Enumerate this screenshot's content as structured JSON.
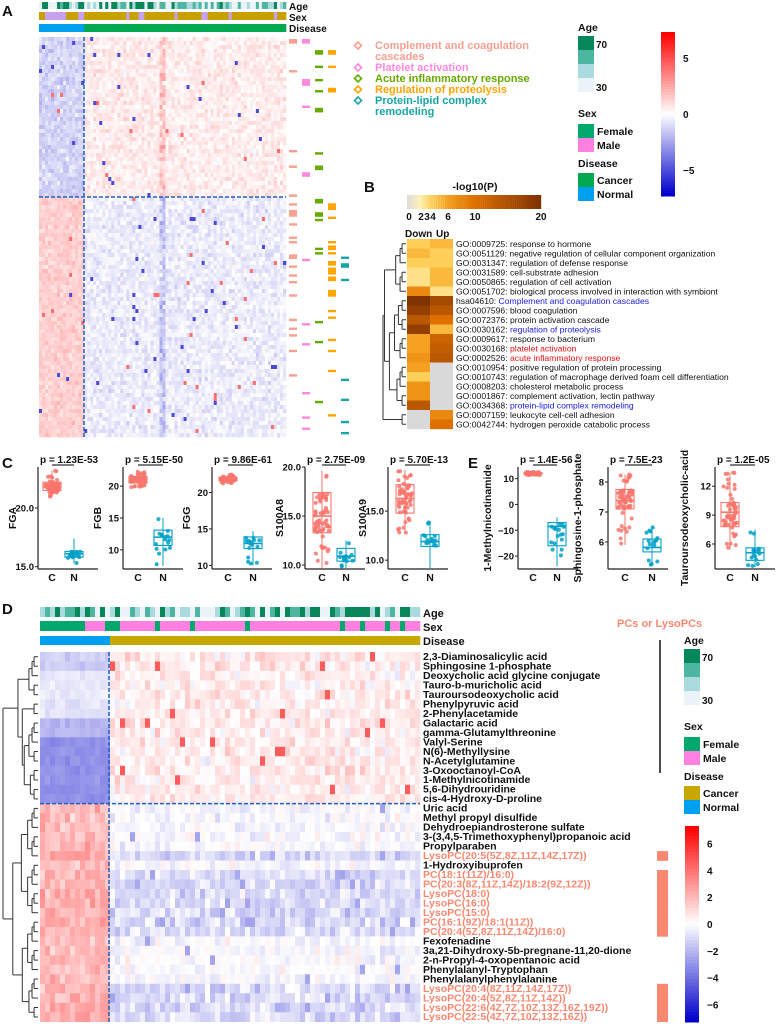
{
  "panel_labels": {
    "a": "A",
    "b": "B",
    "c": "C",
    "d": "D",
    "e": "E"
  },
  "colors": {
    "heat_low": "#0000cc",
    "heat_mid": "#ffffff",
    "heat_high": "#ff0000",
    "age_shades": [
      "#eaf4f8",
      "#a8dade",
      "#4db6a0",
      "#08875a"
    ],
    "female": "#00a86b",
    "male": "#ff80e0",
    "cancer_a": "#00a850",
    "normal": "#00a0f0",
    "cancer_d": "#c8a800",
    "sex_a_1": "#c8a000",
    "sex_a_2": "#c8a0f0",
    "cancer_box": "#f8766d",
    "normal_box": "#00a0c8",
    "complement": "#f8a090",
    "platelet": "#ff88dd",
    "acute": "#66aa00",
    "proteolysis": "#ffa500",
    "protein_lipid": "#1aa5a5",
    "pc_label": "#f88870",
    "go_blue": "#1a1adb",
    "go_red": "#ee1111"
  },
  "panel_a": {
    "annotation_labels": [
      "Age",
      "Sex",
      "Disease"
    ],
    "pathways": [
      {
        "label": "Complement and coagulation",
        "label2": "cascades",
        "color_key": "complement"
      },
      {
        "label": "Platelet activation",
        "color_key": "platelet"
      },
      {
        "label": "Acute inflammatory response",
        "color_key": "acute"
      },
      {
        "label": "Regulation of proteolysis",
        "color_key": "proteolysis"
      },
      {
        "label": "Protein-lipid complex",
        "label2": "remodeling",
        "color_key": "protein_lipid"
      }
    ],
    "legend": {
      "age_title": "Age",
      "age_max": "70",
      "age_min": "30",
      "sex_title": "Sex",
      "female": "Female",
      "male": "Male",
      "disease_title": "Disease",
      "cancer": "Cancer",
      "normal": "Normal"
    },
    "colorbar_ticks": [
      "5",
      "0",
      "−5"
    ],
    "colorbar_values": [
      5,
      0,
      -5
    ]
  },
  "panel_b": {
    "title": "-log10(P)",
    "scale_ticks": [
      "0",
      "2",
      "3",
      "4",
      "6",
      "10",
      "20"
    ],
    "columns": [
      "Down",
      "Up"
    ],
    "go_terms": [
      {
        "id": "GO:0009725",
        "name": "response to hormone",
        "down": 4,
        "up": 5
      },
      {
        "id": "GO:0051129",
        "name": "negative regulation of cellular component organization",
        "down": 5,
        "up": 4
      },
      {
        "id": "GO:0031347",
        "name": "regulation of defense response",
        "down": 4,
        "up": 4
      },
      {
        "id": "GO:0031589",
        "name": "cell-substrate adhesion",
        "down": 3,
        "up": 5
      },
      {
        "id": "GO:0050865",
        "name": "regulation of cell activation",
        "down": 3,
        "up": 5
      },
      {
        "id": "GO:0051702",
        "name": "biological process involved in interaction with symbiont",
        "down": 8,
        "up": 3
      },
      {
        "id": "hsa04610",
        "name": "Complement and coagulation cascades",
        "down": 20,
        "up": 16,
        "highlight": "blue"
      },
      {
        "id": "GO:0007596",
        "name": "blood coagulation",
        "down": 18,
        "up": 14
      },
      {
        "id": "GO:0072376",
        "name": "protein activation cascade",
        "down": 14,
        "up": 10
      },
      {
        "id": "GO:0030162",
        "name": "regulation of proteolysis",
        "down": 18,
        "up": 5,
        "highlight": "blue"
      },
      {
        "id": "GO:0009617",
        "name": "response to bacterium",
        "down": 6,
        "up": 12
      },
      {
        "id": "GO:0030168",
        "name": "platelet activation",
        "down": 6,
        "up": 13,
        "highlight": "red"
      },
      {
        "id": "GO:0002526",
        "name": "acute inflammatory response",
        "down": 7,
        "up": 14,
        "highlight": "red"
      },
      {
        "id": "GO:0010954",
        "name": "positive regulation of protein processing",
        "down": 6,
        "up": 0
      },
      {
        "id": "GO:0010743",
        "name": "regulation of macrophage derived foam cell differentiation",
        "down": 4,
        "up": 0
      },
      {
        "id": "GO:0008203",
        "name": "cholesterol metabolic process",
        "down": 7,
        "up": 0
      },
      {
        "id": "GO:0001867",
        "name": "complement activation, lectin pathway",
        "down": 7,
        "up": 0
      },
      {
        "id": "GO:0034368",
        "name": "protein-lipid complex remodeling",
        "down": 14,
        "up": 0,
        "highlight": "blue"
      },
      {
        "id": "GO:0007159",
        "name": "leukocyte cell-cell adhesion",
        "down": 0,
        "up": 8
      },
      {
        "id": "GO:0042744",
        "name": "hydrogen peroxide catabolic process",
        "down": 0,
        "up": 10
      }
    ]
  },
  "chart_data": [
    {
      "type": "box",
      "panel": "C",
      "ylabel": "FGA",
      "p": "p = 1.23E-53",
      "categories": [
        "C",
        "N"
      ],
      "yticks": [
        "15.0",
        "20.0"
      ],
      "ytick_values": [
        15,
        20
      ],
      "ylim": [
        14.8,
        23.5
      ],
      "groups": [
        {
          "name": "C",
          "min": 20.9,
          "q1": 21.5,
          "median": 21.8,
          "q3": 22.2,
          "max": 23.2
        },
        {
          "name": "N",
          "min": 15.3,
          "q1": 15.8,
          "median": 16.1,
          "q3": 16.3,
          "max": 17.4
        }
      ]
    },
    {
      "type": "box",
      "panel": "C",
      "ylabel": "FGB",
      "p": "p = 5.15E-50",
      "categories": [
        "C",
        "N"
      ],
      "yticks": [
        "10",
        "15",
        "20"
      ],
      "ytick_values": [
        10,
        15,
        20
      ],
      "ylim": [
        7,
        23
      ],
      "groups": [
        {
          "name": "C",
          "min": 19.8,
          "q1": 20.5,
          "median": 21,
          "q3": 21.5,
          "max": 22.3
        },
        {
          "name": "N",
          "min": 7.5,
          "q1": 10.7,
          "median": 12,
          "q3": 13.1,
          "max": 15
        }
      ]
    },
    {
      "type": "box",
      "panel": "C",
      "ylabel": "FGG",
      "p": "p = 9.86E-61",
      "categories": [
        "C",
        "N"
      ],
      "yticks": [
        "10",
        "15",
        "20"
      ],
      "ytick_values": [
        10,
        15,
        20
      ],
      "ylim": [
        9.5,
        23.5
      ],
      "groups": [
        {
          "name": "C",
          "min": 21.2,
          "q1": 21.6,
          "median": 21.9,
          "q3": 22.1,
          "max": 22.5
        },
        {
          "name": "N",
          "min": 10,
          "q1": 12.3,
          "median": 13,
          "q3": 13.9,
          "max": 14.7
        }
      ]
    },
    {
      "type": "box",
      "panel": "C",
      "ylabel": "S100A8",
      "p": "p = 2.75E-09",
      "categories": [
        "C",
        "N"
      ],
      "yticks": [
        "10.0",
        "15.0",
        "20.0"
      ],
      "ytick_values": [
        10,
        15,
        20
      ],
      "ylim": [
        9.6,
        20
      ],
      "groups": [
        {
          "name": "C",
          "min": 9.7,
          "q1": 13.3,
          "median": 15,
          "q3": 17.4,
          "max": 19.6
        },
        {
          "name": "N",
          "min": 9.7,
          "q1": 10.4,
          "median": 10.9,
          "q3": 11.7,
          "max": 12.5
        }
      ]
    },
    {
      "type": "box",
      "panel": "C",
      "ylabel": "S100A9",
      "p": "p = 5.70E-13",
      "categories": [
        "C",
        "N"
      ],
      "yticks": [
        "10.0",
        "15.0"
      ],
      "ytick_values": [
        10,
        15
      ],
      "ylim": [
        9.1,
        19.5
      ],
      "groups": [
        {
          "name": "C",
          "min": 12.8,
          "q1": 14.8,
          "median": 16.3,
          "q3": 17.7,
          "max": 19.2
        },
        {
          "name": "N",
          "min": 9.2,
          "q1": 11.4,
          "median": 11.9,
          "q3": 12.6,
          "max": 13.9
        }
      ]
    },
    {
      "type": "box",
      "panel": "E",
      "ylabel": "1-Methylnicotinamide",
      "p": "p = 1.4E-56",
      "categories": [
        "C",
        "N"
      ],
      "yticks": [
        "−20",
        "−10",
        "0",
        "10"
      ],
      "ytick_values": [
        -20,
        -10,
        0,
        10
      ],
      "ylim": [
        -25,
        14.5
      ],
      "groups": [
        {
          "name": "C",
          "min": 11.3,
          "q1": 11.7,
          "median": 12,
          "q3": 12.3,
          "max": 12.7
        },
        {
          "name": "N",
          "min": -24,
          "q1": -16,
          "median": -8.5,
          "q3": -7,
          "max": -5
        }
      ]
    },
    {
      "type": "box",
      "panel": "E",
      "ylabel": "Sphingosine-1-phosphate",
      "p": "p = 7.5E-23",
      "categories": [
        "C",
        "N"
      ],
      "yticks": [
        "6",
        "7",
        "8"
      ],
      "ytick_values": [
        6,
        7,
        8
      ],
      "ylim": [
        5.1,
        8.5
      ],
      "groups": [
        {
          "name": "C",
          "min": 5.9,
          "q1": 7.1,
          "median": 7.38,
          "q3": 7.75,
          "max": 8.25
        },
        {
          "name": "N",
          "min": 5.2,
          "q1": 5.67,
          "median": 5.82,
          "q3": 6.1,
          "max": 6.55
        }
      ]
    },
    {
      "type": "box",
      "panel": "E",
      "ylabel": "Tauroursodeoxycholic-acid",
      "p": "p = 1.2E-05",
      "categories": [
        "C",
        "N"
      ],
      "yticks": [
        "6",
        "9",
        "12"
      ],
      "ytick_values": [
        6,
        9,
        12
      ],
      "ylim": [
        3.4,
        14
      ],
      "groups": [
        {
          "name": "C",
          "min": 5.4,
          "q1": 7.8,
          "median": 9.3,
          "q3": 10.3,
          "max": 13.4
        },
        {
          "name": "N",
          "min": 3.6,
          "q1": 4.3,
          "median": 5.1,
          "q3": 5.6,
          "max": 7.5
        }
      ]
    }
  ],
  "panel_d": {
    "annotation_labels": [
      "Age",
      "Sex",
      "Disease"
    ],
    "pc_legend": "PCs or LysoPCs",
    "legend": {
      "age_title": "Age",
      "age_max": "70",
      "age_min": "30",
      "sex_title": "Sex",
      "female": "Female",
      "male": "Male",
      "disease_title": "Disease",
      "cancer": "Cancer",
      "normal": "Normal"
    },
    "colorbar_ticks": [
      "6",
      "4",
      "2",
      "0",
      "−2",
      "−4",
      "−6"
    ],
    "colorbar_values": [
      6,
      4,
      2,
      0,
      -2,
      -4,
      -6
    ],
    "metabolites": [
      {
        "name": "2,3-Diaminosalicylic acid"
      },
      {
        "name": "Sphingosine 1-phosphate"
      },
      {
        "name": "Deoxycholic acid glycine conjugate"
      },
      {
        "name": "Tauro-b-muricholic acid"
      },
      {
        "name": "Tauroursodeoxycholic acid"
      },
      {
        "name": "Phenylpyruvic acid"
      },
      {
        "name": "2-Phenylacetamide"
      },
      {
        "name": "Galactaric acid"
      },
      {
        "name": "gamma-Glutamylthreonine"
      },
      {
        "name": "Valyl-Serine"
      },
      {
        "name": "N(6)-Methyllysine"
      },
      {
        "name": "N-Acetylglutamine"
      },
      {
        "name": "3-Oxooctanoyl-CoA"
      },
      {
        "name": "1-Methylnicotinamide"
      },
      {
        "name": "5,6-Dihydrouridine"
      },
      {
        "name": "cis-4-Hydroxy-D-proline"
      },
      {
        "name": "Uric acid"
      },
      {
        "name": "Methyl propyl disulfide"
      },
      {
        "name": "Dehydroepiandrosterone sulfate"
      },
      {
        "name": "3-(3,4,5-Trimethoxyphenyl)propanoic acid"
      },
      {
        "name": "Propylparaben"
      },
      {
        "name": "LysoPC(20:5(5Z,8Z,11Z,14Z,17Z))",
        "pc": true
      },
      {
        "name": "1-Hydroxyibuprofen"
      },
      {
        "name": "PC(18:1(11Z)/16:0)",
        "pc": true
      },
      {
        "name": "PC(20:3(8Z,11Z,14Z)/18:2(9Z,12Z))",
        "pc": true
      },
      {
        "name": "LysoPC(18:0)",
        "pc": true
      },
      {
        "name": "LysoPC(16:0)",
        "pc": true
      },
      {
        "name": "LysoPC(15:0)",
        "pc": true
      },
      {
        "name": "PC(16:1(9Z)/18:1(11Z))",
        "pc": true
      },
      {
        "name": "PC(20:4(5Z,8Z,11Z,14Z)/16:0)",
        "pc": true
      },
      {
        "name": "Fexofenadine"
      },
      {
        "name": "3a,21-Dihydroxy-5b-pregnane-11,20-dione"
      },
      {
        "name": "2-n-Propyl-4-oxopentanoic acid"
      },
      {
        "name": "Phenylalanyl-Tryptophan"
      },
      {
        "name": "Phenylalanylphenylalanine"
      },
      {
        "name": "LysoPC(20:4(8Z,11Z,14Z,17Z))",
        "pc": true
      },
      {
        "name": "LysoPC(20:4(5Z,8Z,11Z,14Z))",
        "pc": true
      },
      {
        "name": "LysoPC(22:6(4Z,7Z,10Z,13Z,16Z,19Z))",
        "pc": true
      },
      {
        "name": "LysoPC(22:5(4Z,7Z,10Z,13Z,16Z))",
        "pc": true
      }
    ]
  }
}
